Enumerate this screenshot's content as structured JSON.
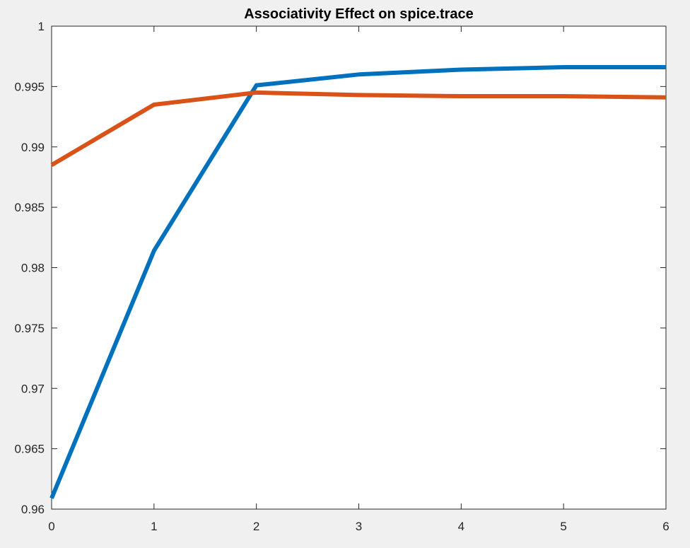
{
  "window": {
    "background": "#f0f0f0"
  },
  "chart_data": {
    "type": "line",
    "title": "Associativity Effect on spice.trace",
    "xlabel": "",
    "ylabel": "",
    "xlim": [
      0,
      6
    ],
    "ylim": [
      0.96,
      1
    ],
    "xticks": [
      0,
      1,
      2,
      3,
      4,
      5,
      6
    ],
    "xtick_labels": [
      "0",
      "1",
      "2",
      "3",
      "4",
      "5",
      "6"
    ],
    "yticks": [
      0.96,
      0.965,
      0.97,
      0.975,
      0.98,
      0.985,
      0.99,
      0.995,
      1
    ],
    "ytick_labels": [
      "0.96",
      "0.965",
      "0.97",
      "0.975",
      "0.98",
      "0.985",
      "0.99",
      "0.995",
      "1"
    ],
    "grid": false,
    "legend": "none",
    "x": [
      0,
      1,
      2,
      3,
      4,
      5,
      6
    ],
    "series": [
      {
        "color": "#0072bd",
        "values": [
          0.9609,
          0.9814,
          0.9951,
          0.996,
          0.9964,
          0.9966,
          0.9966
        ]
      },
      {
        "color": "#d95319",
        "values": [
          0.9885,
          0.9935,
          0.9945,
          0.9943,
          0.9942,
          0.9942,
          0.9941
        ]
      }
    ]
  }
}
